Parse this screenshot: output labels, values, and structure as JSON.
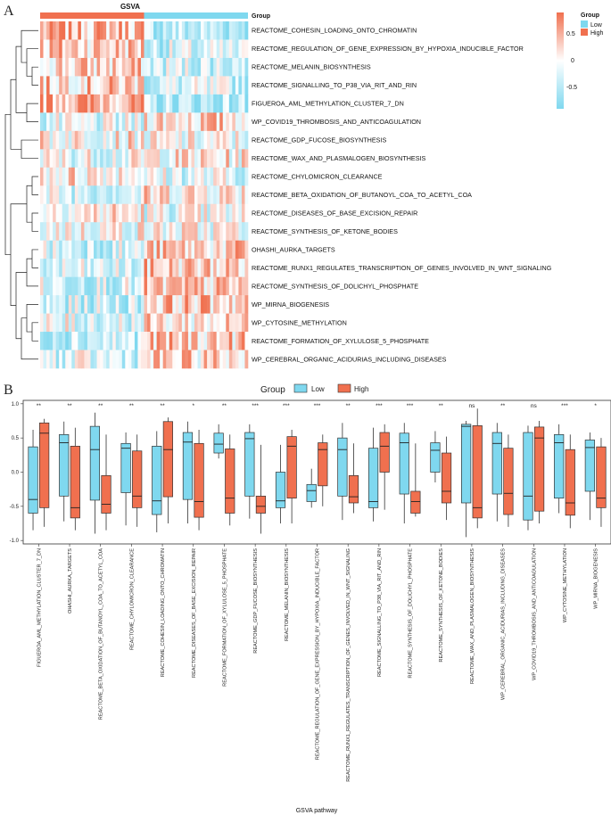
{
  "panels": {
    "a": "A",
    "b": "B"
  },
  "heatmap": {
    "title": "GSVA",
    "group_annotation_label": "Group",
    "colorbar": {
      "ticks": [
        "0.5",
        "0",
        "-0.5"
      ],
      "high_color": "#f0704f",
      "mid_color": "#ffffff",
      "low_color": "#7fd8ef"
    },
    "legend": {
      "title": "Group",
      "items": [
        {
          "label": "Low",
          "color": "#7fd8ef"
        },
        {
          "label": "High",
          "color": "#f0704f"
        }
      ]
    },
    "rows": [
      "REACTOME_COHESIN_LOADING_ONTO_CHROMATIN",
      "REACTOME_REGULATION_OF_GENE_EXPRESSION_BY_HYPOXIA_INDUCIBLE_FACTOR",
      "REACTOME_MELANIN_BIOSYNTHESIS",
      "REACTOME_SIGNALLING_TO_P38_VIA_RIT_AND_RIN",
      "FIGUEROA_AML_METHYLATION_CLUSTER_7_DN",
      "WP_COVID19_THROMBOSIS_AND_ANTICOAGULATION",
      "REACTOME_GDP_FUCOSE_BIOSYNTHESIS",
      "REACTOME_WAX_AND_PLASMALOGEN_BIOSYNTHESIS",
      "REACTOME_CHYLOMICRON_CLEARANCE",
      "REACTOME_BETA_OXIDATION_OF_BUTANOYL_COA_TO_ACETYL_COA",
      "REACTOME_DISEASES_OF_BASE_EXCISION_REPAIR",
      "REACTOME_SYNTHESIS_OF_KETONE_BODIES",
      "OHASHI_AURKA_TARGETS",
      "REACTOME_RUNX1_REGULATES_TRANSCRIPTION_OF_GENES_INVOLVED_IN_WNT_SIGNALING",
      "REACTOME_SYNTHESIS_OF_DOLICHYL_PHOSPHATE",
      "WP_MIRNA_BIOGENESIS",
      "WP_CYTOSINE_METHYLATION",
      "REACTOME_FORMATION_OF_XYLULOSE_5_PHOSPHATE",
      "WP_CEREBRAL_ORGANIC_ACIDURIAS_INCLUDING_DISEASES"
    ]
  },
  "chart_data": {
    "type": "box",
    "title": "",
    "xlabel": "GSVA pathway",
    "ylabel": "",
    "ylim": [
      -1.05,
      1.05
    ],
    "yticks": [
      "1.0",
      "0.5",
      "0.0",
      "-0.5",
      "-1.0"
    ],
    "legend": {
      "title": "Group",
      "items": [
        {
          "label": "Low",
          "color": "#7fd8ef"
        },
        {
          "label": "High",
          "color": "#f0704f"
        }
      ]
    },
    "categories": [
      {
        "name": "FIGUEROA_AML_METHYLATION_CLUSTER_7_DN",
        "sig": "**",
        "low": {
          "whisker_low": -0.85,
          "q1": -0.6,
          "median": -0.4,
          "q3": 0.37,
          "whisker_high": 0.62
        },
        "high": {
          "whisker_low": -0.8,
          "q1": -0.52,
          "median": 0.57,
          "q3": 0.72,
          "whisker_high": 0.78
        }
      },
      {
        "name": "OHASHI_AURKA_TARGETS",
        "sig": "**",
        "low": {
          "whisker_low": -0.72,
          "q1": -0.35,
          "median": 0.43,
          "q3": 0.55,
          "whisker_high": 0.74
        },
        "high": {
          "whisker_low": -0.85,
          "q1": -0.67,
          "median": -0.52,
          "q3": 0.38,
          "whisker_high": 0.65
        }
      },
      {
        "name": "REACTOME_BETA_OXIDATION_OF_BUTANOYL_COA_TO_ACETYL_COA",
        "sig": "**",
        "low": {
          "whisker_low": -0.9,
          "q1": -0.41,
          "median": 0.33,
          "q3": 0.67,
          "whisker_high": 0.87
        },
        "high": {
          "whisker_low": -0.85,
          "q1": -0.6,
          "median": -0.47,
          "q3": -0.05,
          "whisker_high": 0.55
        }
      },
      {
        "name": "REACTOME_CHYLOMICRON_CLEARANCE",
        "sig": "**",
        "low": {
          "whisker_low": -0.78,
          "q1": -0.3,
          "median": 0.35,
          "q3": 0.42,
          "whisker_high": 0.58
        },
        "high": {
          "whisker_low": -0.8,
          "q1": -0.52,
          "median": -0.35,
          "q3": 0.31,
          "whisker_high": 0.55
        }
      },
      {
        "name": "REACTOME_COHESIN_LOADING_ONTO_CHROMATIN",
        "sig": "**",
        "low": {
          "whisker_low": -0.88,
          "q1": -0.62,
          "median": -0.42,
          "q3": 0.38,
          "whisker_high": 0.6
        },
        "high": {
          "whisker_low": -0.75,
          "q1": -0.36,
          "median": 0.33,
          "q3": 0.74,
          "whisker_high": 0.8
        }
      },
      {
        "name": "REACTOME_DISEASES_OF_BASE_EXCISION_REPAIR",
        "sig": "*",
        "low": {
          "whisker_low": -0.75,
          "q1": -0.4,
          "median": 0.44,
          "q3": 0.58,
          "whisker_high": 0.74
        },
        "high": {
          "whisker_low": -0.85,
          "q1": -0.66,
          "median": -0.43,
          "q3": 0.42,
          "whisker_high": 0.62
        }
      },
      {
        "name": "REACTOME_FORMATION_OF_XYLULOSE_5_PHOSPHATE",
        "sig": "**",
        "low": {
          "whisker_low": 0.2,
          "q1": 0.28,
          "median": 0.41,
          "q3": 0.57,
          "whisker_high": 0.7
        },
        "high": {
          "whisker_low": -0.78,
          "q1": -0.6,
          "median": -0.38,
          "q3": 0.34,
          "whisker_high": 0.55
        }
      },
      {
        "name": "REACTOME_GDP_FUCOSE_BIOSYNTHESIS",
        "sig": "***",
        "low": {
          "whisker_low": -0.68,
          "q1": -0.35,
          "median": 0.49,
          "q3": 0.58,
          "whisker_high": 0.7
        },
        "high": {
          "whisker_low": -0.9,
          "q1": -0.6,
          "median": -0.5,
          "q3": -0.35,
          "whisker_high": 0.4
        }
      },
      {
        "name": "REACTOME_MELANIN_BIOSYNTHESIS",
        "sig": "***",
        "low": {
          "whisker_low": -0.75,
          "q1": -0.52,
          "median": -0.42,
          "q3": 0.0,
          "whisker_high": 0.4
        },
        "high": {
          "whisker_low": -0.75,
          "q1": -0.38,
          "median": 0.38,
          "q3": 0.52,
          "whisker_high": 0.62
        }
      },
      {
        "name": "REACTOME_REGULATION_OF_GENE_EXPRESSION_BY_HYPOXIA_INDUCIBLE_FACTOR",
        "sig": "***",
        "low": {
          "whisker_low": -0.52,
          "q1": -0.43,
          "median": -0.27,
          "q3": -0.18,
          "whisker_high": 0.05
        },
        "high": {
          "whisker_low": -0.5,
          "q1": -0.2,
          "median": 0.33,
          "q3": 0.43,
          "whisker_high": 0.55
        }
      },
      {
        "name": "REACTOME_RUNX1_REGULATES_TRANSCRIPTION_OF_GENES_INVOLVED_IN_WNT_SIGNALING",
        "sig": "**",
        "low": {
          "whisker_low": -0.7,
          "q1": -0.35,
          "median": 0.33,
          "q3": 0.5,
          "whisker_high": 0.72
        },
        "high": {
          "whisker_low": -0.6,
          "q1": -0.45,
          "median": -0.36,
          "q3": -0.05,
          "whisker_high": 0.42
        }
      },
      {
        "name": "REACTOME_SIGNALLING_TO_P38_VIA_RIT_AND_RIN",
        "sig": "***",
        "low": {
          "whisker_low": -0.72,
          "q1": -0.52,
          "median": -0.43,
          "q3": 0.35,
          "whisker_high": 0.65
        },
        "high": {
          "whisker_low": -0.55,
          "q1": 0.0,
          "median": 0.38,
          "q3": 0.58,
          "whisker_high": 0.7
        }
      },
      {
        "name": "REACTOME_SYNTHESIS_OF_DOLICHYL_PHOSPHATE",
        "sig": "***",
        "low": {
          "whisker_low": -0.75,
          "q1": -0.32,
          "median": 0.43,
          "q3": 0.57,
          "whisker_high": 0.72
        },
        "high": {
          "whisker_low": -0.65,
          "q1": -0.6,
          "median": -0.43,
          "q3": -0.28,
          "whisker_high": 0.42
        }
      },
      {
        "name": "REACTOME_SYNTHESIS_OF_KETONE_BODIES",
        "sig": "**",
        "low": {
          "whisker_low": -0.15,
          "q1": 0.0,
          "median": 0.32,
          "q3": 0.43,
          "whisker_high": 0.6
        },
        "high": {
          "whisker_low": -0.7,
          "q1": -0.45,
          "median": -0.28,
          "q3": 0.28,
          "whisker_high": 0.52
        }
      },
      {
        "name": "REACTOME_WAX_AND_PLASMALOGEN_BIOSYNTHESIS",
        "sig": "ns",
        "low": {
          "whisker_low": -0.95,
          "q1": -0.45,
          "median": 0.67,
          "q3": 0.7,
          "whisker_high": 0.75
        },
        "high": {
          "whisker_low": -0.82,
          "q1": -0.67,
          "median": -0.52,
          "q3": 0.68,
          "whisker_high": 0.93
        }
      },
      {
        "name": "WP_CEREBRAL_ORGANIC_ACIDURIAS_INCLUDING_DISEASES",
        "sig": "**",
        "low": {
          "whisker_low": -0.72,
          "q1": -0.32,
          "median": 0.42,
          "q3": 0.58,
          "whisker_high": 0.72
        },
        "high": {
          "whisker_low": -0.8,
          "q1": -0.62,
          "median": -0.31,
          "q3": 0.35,
          "whisker_high": 0.55
        }
      },
      {
        "name": "WP_COVID19_THROMBOSIS_AND_ANTICOAGULATION",
        "sig": "ns",
        "low": {
          "whisker_low": -0.85,
          "q1": -0.7,
          "median": -0.35,
          "q3": 0.58,
          "whisker_high": 0.68
        },
        "high": {
          "whisker_low": -0.75,
          "q1": -0.57,
          "median": 0.5,
          "q3": 0.66,
          "whisker_high": 0.75
        }
      },
      {
        "name": "WP_CYTOSINE_METHYLATION",
        "sig": "***",
        "low": {
          "whisker_low": -0.6,
          "q1": -0.38,
          "median": 0.43,
          "q3": 0.55,
          "whisker_high": 0.7
        },
        "high": {
          "whisker_low": -0.82,
          "q1": -0.63,
          "median": -0.45,
          "q3": 0.33,
          "whisker_high": 0.55
        }
      },
      {
        "name": "WP_MIRNA_BIOGENESIS",
        "sig": "*",
        "low": {
          "whisker_low": -0.7,
          "q1": -0.28,
          "median": 0.36,
          "q3": 0.47,
          "whisker_high": 0.58
        },
        "high": {
          "whisker_low": -0.8,
          "q1": -0.52,
          "median": -0.38,
          "q3": 0.37,
          "whisker_high": 0.5
        }
      }
    ]
  }
}
